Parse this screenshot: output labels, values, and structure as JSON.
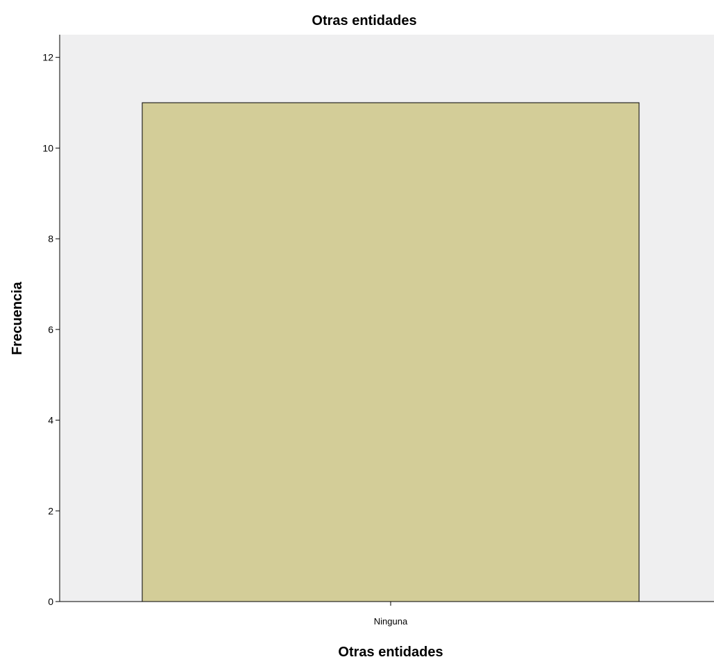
{
  "chart_data": {
    "type": "bar",
    "title": "Otras entidades",
    "xlabel": "Otras entidades",
    "ylabel": "Frecuencia",
    "categories": [
      "Ninguna"
    ],
    "values": [
      11
    ],
    "ylim": [
      0,
      12.5
    ],
    "yticks": [
      "0",
      "2",
      "4",
      "6",
      "8",
      "10",
      "12"
    ],
    "grid": false,
    "legend": "none"
  },
  "colors": {
    "plot_background": "#efeff0",
    "bar_fill": "#d3cd98",
    "bar_stroke": "#000000",
    "axis": "#000000"
  }
}
